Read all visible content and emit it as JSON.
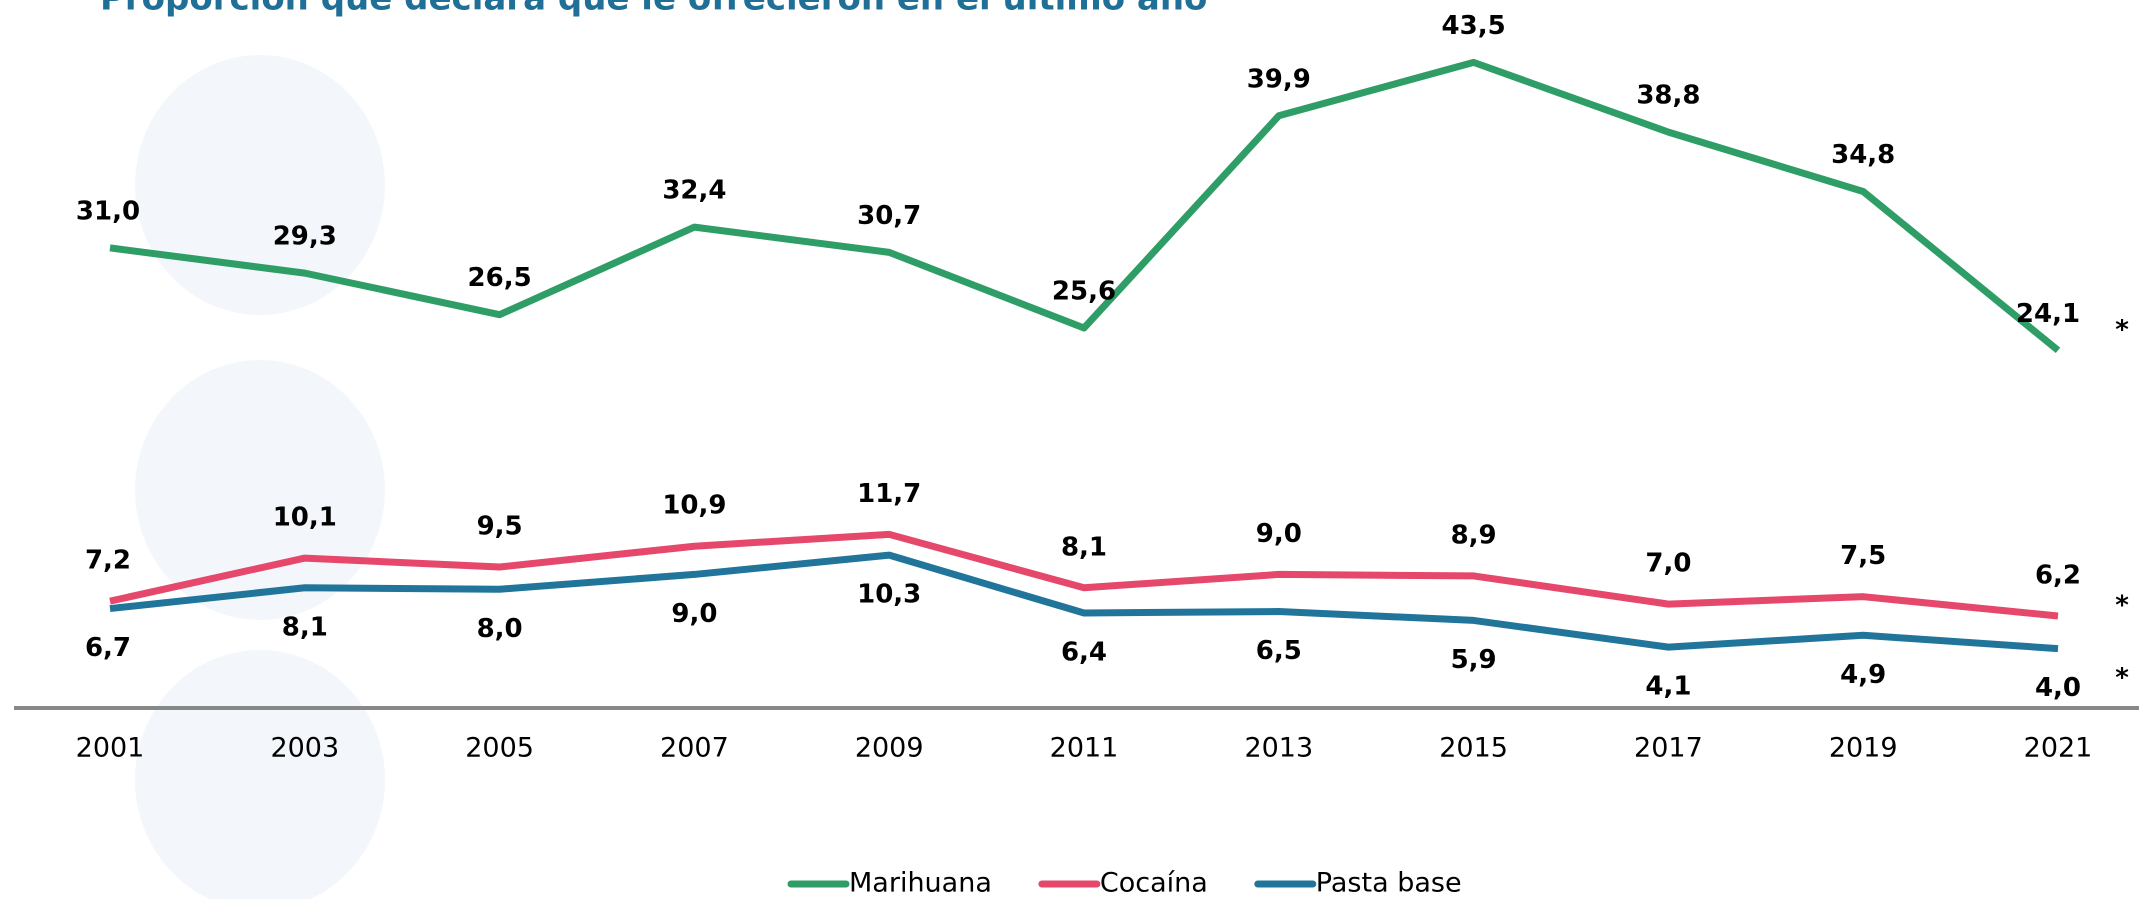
{
  "chart_data": {
    "type": "line",
    "title": "Proporción que declara que le ofrecieron en el último año",
    "categories": [
      "2001",
      "2003",
      "2005",
      "2007",
      "2009",
      "2011",
      "2013",
      "2015",
      "2017",
      "2019",
      "2021"
    ],
    "series": [
      {
        "name": "Marihuana",
        "color": "#2e9e66",
        "note": "*",
        "values": [
          31.0,
          29.3,
          26.5,
          32.4,
          30.7,
          25.6,
          39.9,
          43.5,
          38.8,
          34.8,
          24.1
        ],
        "value_labels": [
          "31,0",
          "29,3",
          "26,5",
          "32,4",
          "30,7",
          "25,6",
          "39,9",
          "43,5",
          "38,8",
          "34,8",
          "24,1"
        ]
      },
      {
        "name": "Cocaína",
        "color": "#e5486a",
        "note": "*",
        "values": [
          7.2,
          10.1,
          9.5,
          10.9,
          11.7,
          8.1,
          9.0,
          8.9,
          7.0,
          7.5,
          6.2
        ],
        "value_labels": [
          "7,2",
          "10,1",
          "9,5",
          "10,9",
          "11,7",
          "8,1",
          "9,0",
          "8,9",
          "7,0",
          "7,5",
          "6,2"
        ]
      },
      {
        "name": "Pasta base",
        "color": "#21759b",
        "note": "*",
        "values": [
          6.7,
          8.1,
          8.0,
          9.0,
          10.3,
          6.4,
          6.5,
          5.9,
          4.1,
          4.9,
          4.0
        ],
        "value_labels": [
          "6,7",
          "8,1",
          "8,0",
          "9,0",
          "10,3",
          "6,4",
          "6,5",
          "5,9",
          "4,1",
          "4,9",
          "4,0"
        ]
      }
    ],
    "ylim": [
      0,
      47.5
    ]
  }
}
